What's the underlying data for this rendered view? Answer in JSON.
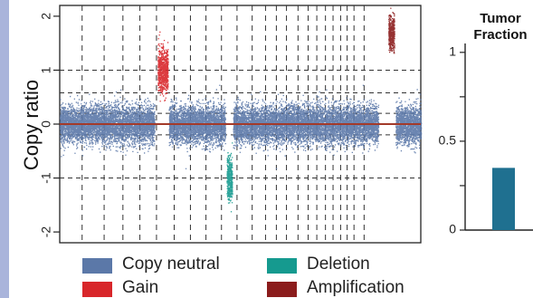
{
  "chart_data": [
    {
      "type": "scatter",
      "title": "",
      "ylabel": "Copy ratio",
      "xlabel": "",
      "ylim": [
        -2.2,
        2.2
      ],
      "y_ticks": [
        {
          "value": 2,
          "label": "2"
        },
        {
          "value": 1,
          "label": "1"
        },
        {
          "value": 0,
          "label": "0"
        },
        {
          "value": -1,
          "label": "-1"
        },
        {
          "value": -2,
          "label": "-2"
        }
      ],
      "dashed_reference_lines": [
        1.0,
        0.58,
        0.2,
        -0.2,
        -1.0
      ],
      "baseline": 0,
      "chromosome_boundaries": [
        0.0,
        0.062,
        0.123,
        0.175,
        0.222,
        0.268,
        0.317,
        0.362,
        0.405,
        0.448,
        0.491,
        0.533,
        0.57,
        0.6,
        0.628,
        0.66,
        0.688,
        0.712,
        0.736,
        0.757,
        0.778,
        0.796,
        0.815,
        0.843,
        1.0
      ],
      "segments": [
        {
          "start": 0.0,
          "end": 0.262,
          "copy_ratio": 0.0,
          "sd": 0.17,
          "class": "Copy neutral"
        },
        {
          "start": 0.271,
          "end": 0.299,
          "copy_ratio": 1.0,
          "sd": 0.2,
          "class": "Gain"
        },
        {
          "start": 0.302,
          "end": 0.458,
          "copy_ratio": 0.0,
          "sd": 0.17,
          "class": "Copy neutral"
        },
        {
          "start": 0.462,
          "end": 0.477,
          "copy_ratio": -1.0,
          "sd": 0.2,
          "class": "Deletion"
        },
        {
          "start": 0.48,
          "end": 0.882,
          "copy_ratio": 0.0,
          "sd": 0.17,
          "class": "Copy neutral"
        },
        {
          "start": 0.91,
          "end": 0.926,
          "copy_ratio": 1.7,
          "sd": 0.16,
          "class": "Amplification"
        },
        {
          "start": 0.93,
          "end": 1.0,
          "copy_ratio": 0.0,
          "sd": 0.17,
          "class": "Copy neutral"
        }
      ]
    },
    {
      "type": "bar",
      "title": "Tumor Fraction",
      "ylim": [
        0,
        1.05
      ],
      "y_ticks": [
        {
          "value": 1,
          "label": "1"
        },
        {
          "value": 0.5,
          "label": "0.5"
        },
        {
          "value": 0,
          "label": "0"
        }
      ],
      "categories": [
        ""
      ],
      "values": [
        0.35
      ]
    }
  ],
  "legend": [
    {
      "label": "Copy neutral",
      "color": "#5b78a8"
    },
    {
      "label": "Deletion",
      "color": "#159a8f"
    },
    {
      "label": "Gain",
      "color": "#d8262a"
    },
    {
      "label": "Amplification",
      "color": "#8b1c1c"
    }
  ],
  "colors": {
    "copy_neutral": "#5b78a8",
    "gain": "#d8262a",
    "deletion": "#159a8f",
    "amplification": "#8b1c1c",
    "baseline": "#a33a2a",
    "bar": "#1f7090",
    "accent_bar": "#a9b4db"
  }
}
